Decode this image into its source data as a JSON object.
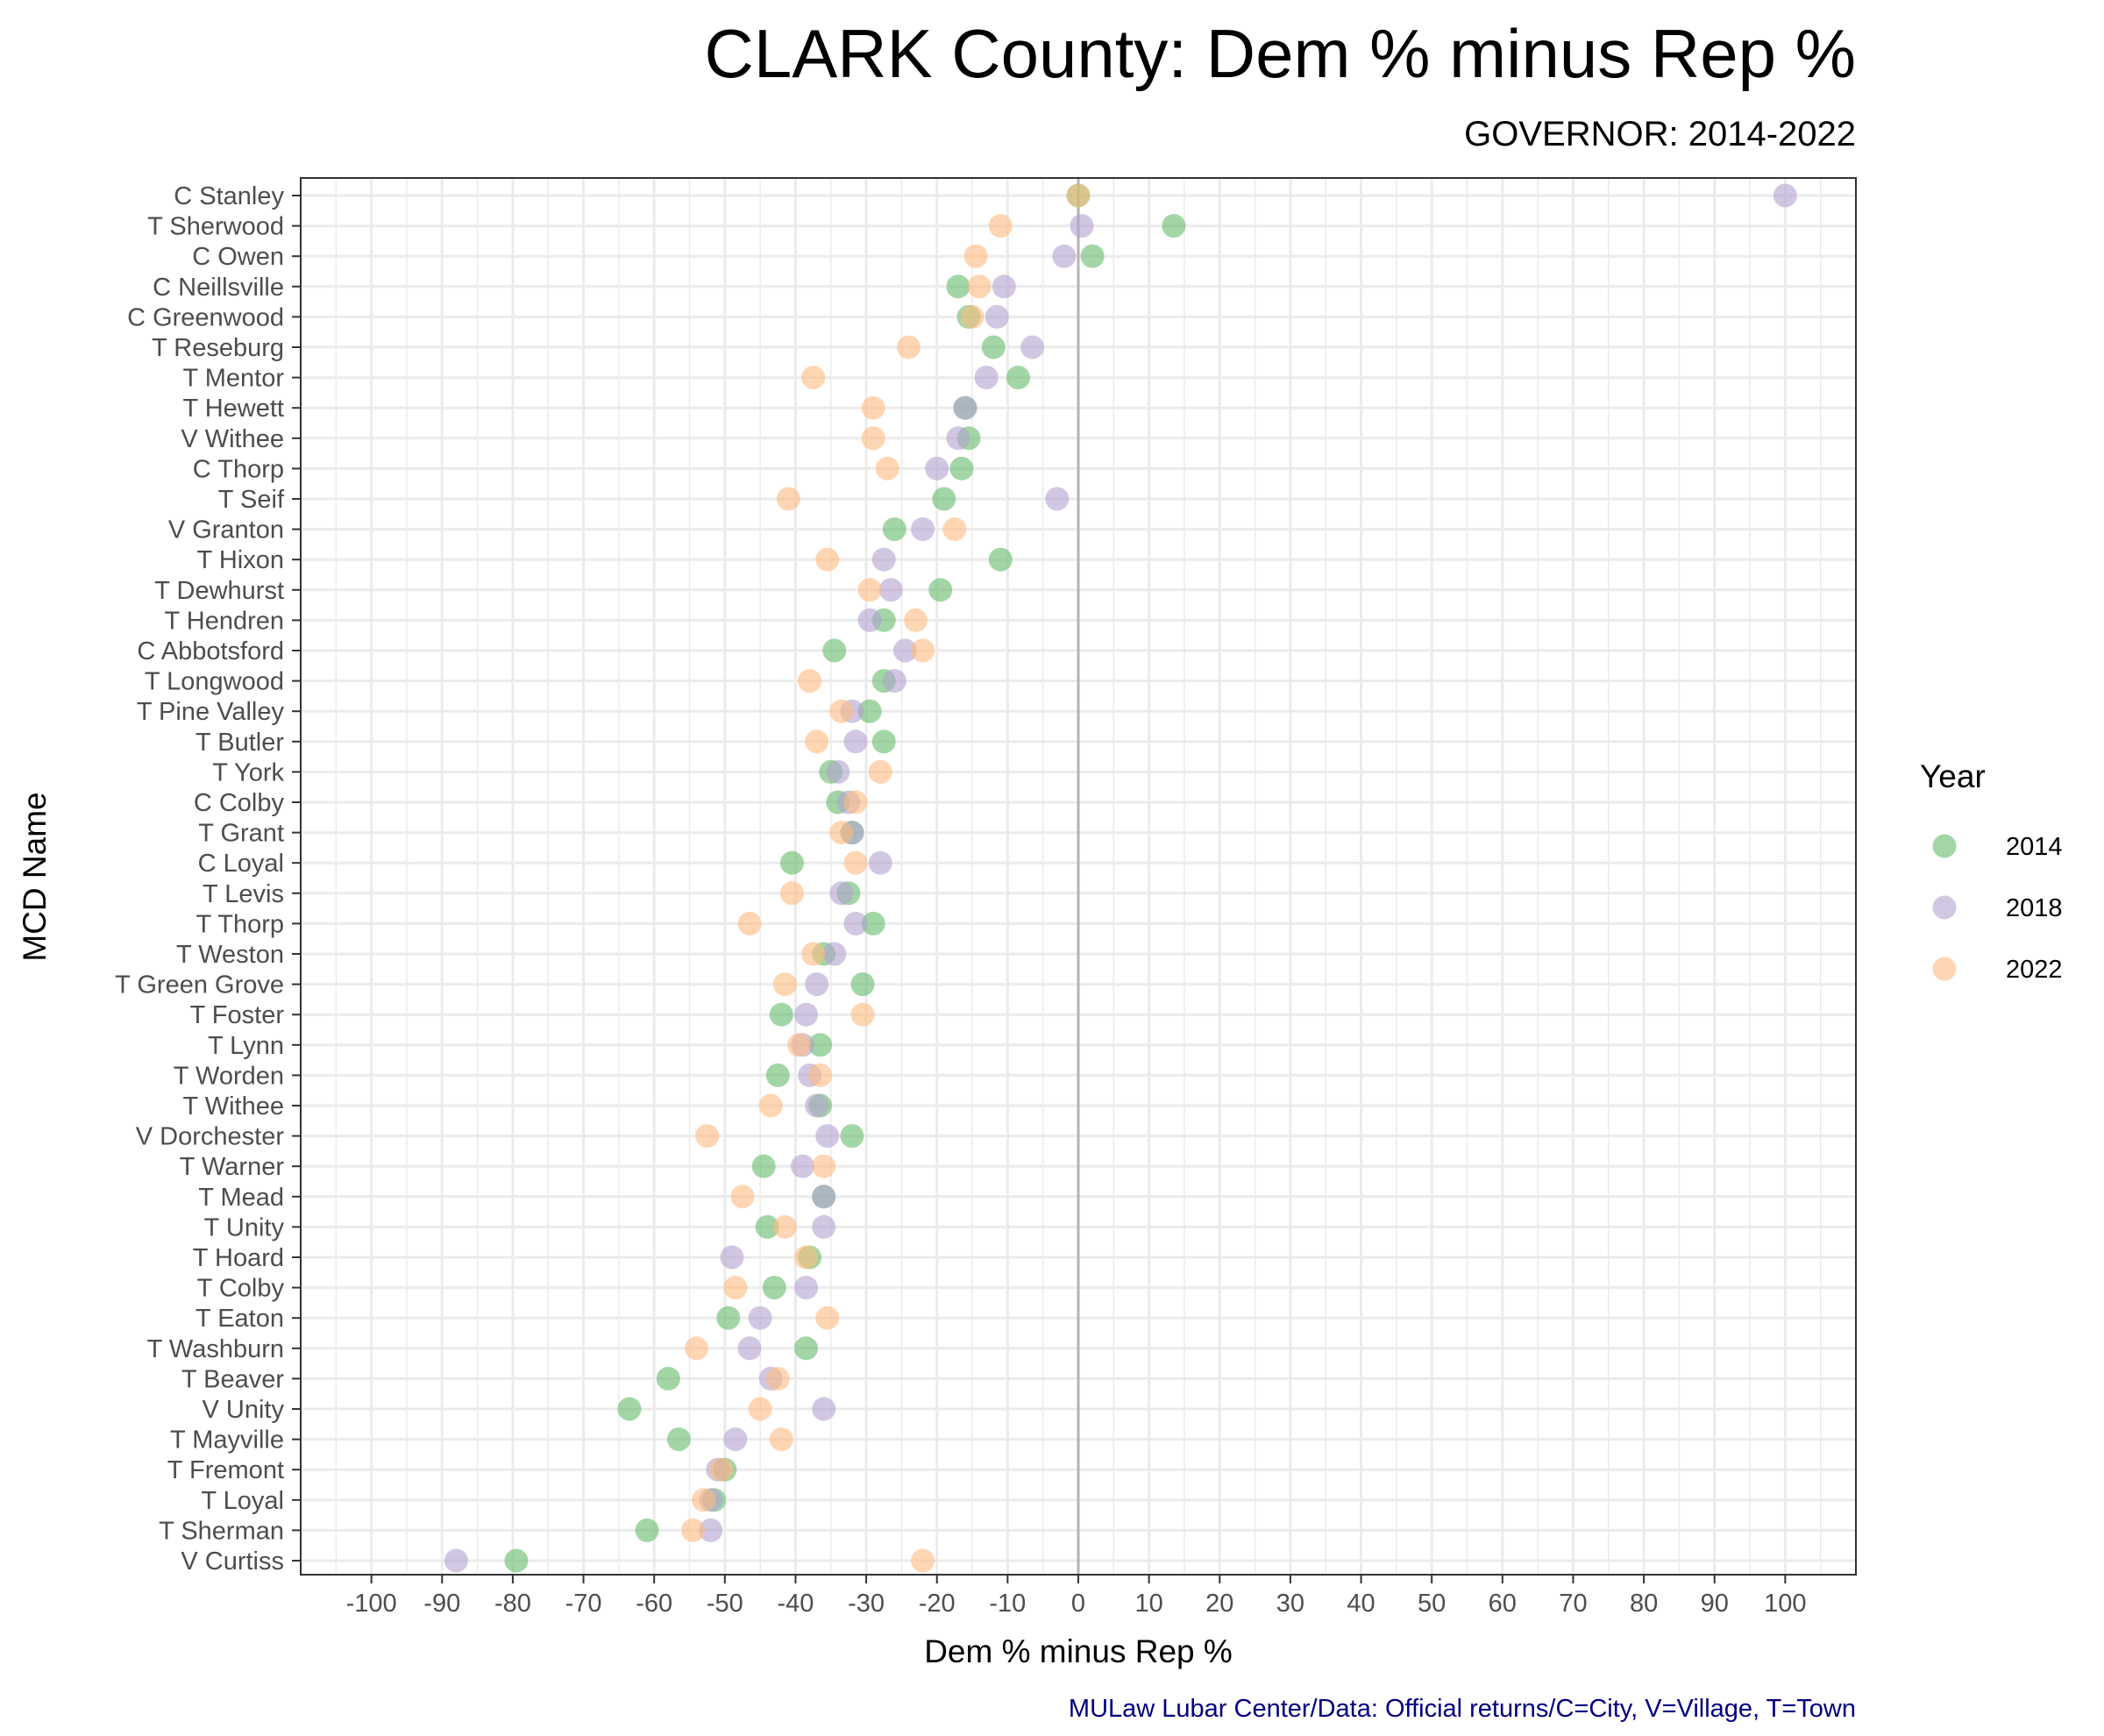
{
  "chart_data": {
    "type": "scatter",
    "title": "CLARK County: Dem % minus Rep %",
    "subtitle": "GOVERNOR: 2014-2022",
    "xlabel": "Dem % minus Rep %",
    "ylabel": "MCD Name",
    "caption": "MULaw Lubar Center/Data: Official returns/C=City, V=Village, T=Town",
    "xlim": [
      -110,
      110
    ],
    "xticks": [
      -100,
      -90,
      -80,
      -70,
      -60,
      -50,
      -40,
      -30,
      -20,
      -10,
      0,
      10,
      20,
      30,
      40,
      50,
      60,
      70,
      80,
      90,
      100
    ],
    "xtick_labels": [
      "-100",
      "-90",
      "-80",
      "-70",
      "-60",
      "-50",
      "-40",
      "-30",
      "-20",
      "-10",
      "0",
      "10",
      "20",
      "30",
      "40",
      "50",
      "60",
      "70",
      "80",
      "90",
      "100"
    ],
    "reference_line_x": 0,
    "grid": true,
    "legend": {
      "title": "Year",
      "position": "right"
    },
    "categories": [
      "C Stanley",
      "T Sherwood",
      "C Owen",
      "C Neillsville",
      "C Greenwood",
      "T Reseburg",
      "T Mentor",
      "T Hewett",
      "V Withee",
      "C Thorp",
      "T Seif",
      "V Granton",
      "T Hixon",
      "T Dewhurst",
      "T Hendren",
      "C Abbotsford",
      "T Longwood",
      "T Pine Valley",
      "T Butler",
      "T York",
      "C Colby",
      "T Grant",
      "C Loyal",
      "T Levis",
      "T Thorp",
      "T Weston",
      "T Green Grove",
      "T Foster",
      "T Lynn",
      "T Worden",
      "T Withee",
      "V Dorchester",
      "T Warner",
      "T Mead",
      "T Unity",
      "T Hoard",
      "T Colby",
      "T Eaton",
      "T Washburn",
      "T Beaver",
      "V Unity",
      "T Mayville",
      "T Fremont",
      "T Loyal",
      "T Sherman",
      "V Curtiss"
    ],
    "series": [
      {
        "name": "2014",
        "color": "#66bb6a",
        "values": [
          0,
          13.5,
          2,
          -17,
          -15.5,
          -12,
          -8.5,
          -16,
          -15.5,
          -16.5,
          -19,
          -26,
          -11,
          -19.5,
          -27.5,
          -34.5,
          -27.5,
          -29.5,
          -27.5,
          -35,
          -34,
          -32,
          -40.5,
          -32.5,
          -29,
          -36,
          -30.5,
          -42,
          -36.5,
          -42.5,
          -36.5,
          -32,
          -44.5,
          -36,
          -44,
          -38,
          -43,
          -49.5,
          -38.5,
          -58,
          -63.5,
          -56.5,
          -50,
          -51.5,
          -61,
          -79.5
        ]
      },
      {
        "name": "2018",
        "color": "#b3a2d1",
        "values": [
          100,
          0.5,
          -2,
          -10.5,
          -11.5,
          -6.5,
          -13,
          -16,
          -17,
          -20,
          -3,
          -22,
          -27.5,
          -26.5,
          -29.5,
          -24.5,
          -26,
          -32,
          -31.5,
          -34,
          -32.5,
          -32,
          -28,
          -33.5,
          -31.5,
          -34.5,
          -37,
          -38.5,
          -39,
          -38,
          -37,
          -35.5,
          -39,
          -36,
          -36,
          -49,
          -38.5,
          -45,
          -46.5,
          -43.5,
          -36,
          -48.5,
          -51,
          -52,
          -52,
          -88
        ]
      },
      {
        "name": "2022",
        "color": "#ffbb80",
        "values": [
          0,
          -11,
          -14.5,
          -14,
          -15,
          -24,
          -37.5,
          -29,
          -29,
          -27,
          -41,
          -17.5,
          -35.5,
          -29.5,
          -23,
          -22,
          -38,
          -33.5,
          -37,
          -28,
          -31.5,
          -33.5,
          -31.5,
          -40.5,
          -46.5,
          -37.5,
          -41.5,
          -30.5,
          -39.5,
          -36.5,
          -43.5,
          -52.5,
          -36,
          -47.5,
          -41.5,
          -38.5,
          -48.5,
          -35.5,
          -54,
          -42.5,
          -45,
          -42,
          -50.5,
          -53,
          -54.5,
          -22
        ]
      }
    ]
  }
}
